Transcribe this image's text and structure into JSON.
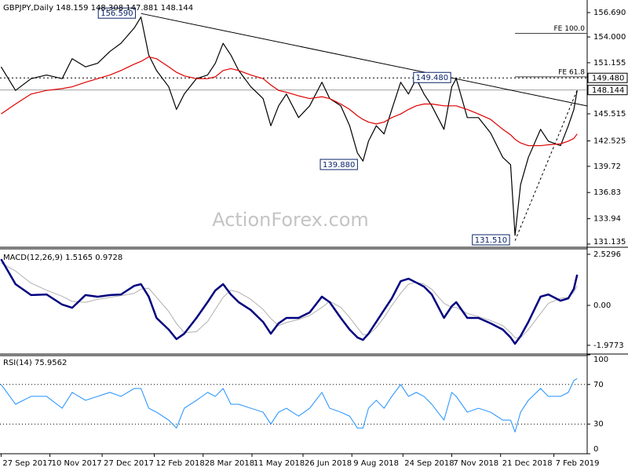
{
  "chart_data": [
    {
      "type": "line",
      "title": "GBPJPY,Daily  148.159 148.308 147.881 148.144",
      "watermark": "ActionForex.com",
      "xlim": [
        "2017-09-26",
        "2019-03-09"
      ],
      "ylim": [
        130.87,
        158.08
      ],
      "yticks": [
        {
          "value": 156.69,
          "label": "156.690"
        },
        {
          "value": 154,
          "label": "154.000"
        },
        151.155,
        145.515,
        142.525,
        139.72,
        136.83,
        133.94,
        131.135
      ],
      "x": [
        "2017-09-27",
        "2017-10-10",
        "2017-10-24",
        "2017-11-07",
        "2017-11-21",
        "2017-11-30",
        "2017-12-12",
        "2017-12-23",
        "2018-01-03",
        "2018-01-13",
        "2018-01-25",
        "2018-01-31",
        "2018-02-07",
        "2018-02-14",
        "2018-02-25",
        "2018-03-04",
        "2018-03-11",
        "2018-03-22",
        "2018-04-01",
        "2018-04-08",
        "2018-04-15",
        "2018-04-22",
        "2018-04-29",
        "2018-05-10",
        "2018-05-21",
        "2018-05-28",
        "2018-06-04",
        "2018-06-11",
        "2018-06-22",
        "2018-07-02",
        "2018-07-13",
        "2018-07-20",
        "2018-07-30",
        "2018-08-07",
        "2018-08-14",
        "2018-08-19",
        "2018-08-24",
        "2018-08-31",
        "2018-09-07",
        "2018-09-14",
        "2018-09-22",
        "2018-09-29",
        "2018-10-06",
        "2018-10-13",
        "2018-10-20",
        "2018-10-31",
        "2018-11-07",
        "2018-11-11",
        "2018-11-21",
        "2018-12-01",
        "2018-12-12",
        "2018-12-23",
        "2018-12-30",
        "2019-01-03",
        "2019-01-08",
        "2019-01-15",
        "2019-01-26",
        "2019-02-02",
        "2019-02-13",
        "2019-02-20",
        "2019-02-25",
        "2019-02-28"
      ],
      "series": [
        {
          "color": "#000000",
          "width": 1.2,
          "values": [
            150.7,
            148.1,
            149.4,
            149.8,
            149.4,
            151.6,
            150.7,
            151.1,
            152.4,
            153.3,
            155.0,
            156.2,
            152.0,
            150.3,
            148.5,
            146.0,
            147.7,
            149.4,
            149.8,
            151.1,
            153.3,
            152.0,
            150.3,
            148.5,
            147.2,
            144.2,
            146.4,
            147.7,
            145.1,
            146.4,
            149.0,
            147.2,
            146.4,
            144.2,
            141.2,
            140.3,
            142.5,
            144.2,
            143.3,
            146.0,
            149.0,
            147.7,
            149.4,
            147.7,
            146.4,
            143.8,
            148.5,
            149.4,
            145.1,
            145.1,
            143.4,
            140.7,
            139.9,
            132.1,
            137.7,
            140.7,
            143.8,
            142.5,
            142.0,
            144.2,
            146.0,
            148.1
          ]
        },
        {
          "color": "#e00000",
          "width": 1.2,
          "values": [
            145.5,
            146.6,
            147.7,
            148.1,
            148.3,
            148.5,
            149.0,
            149.4,
            149.8,
            150.3,
            151.0,
            151.3,
            151.8,
            151.6,
            150.7,
            150.1,
            149.7,
            149.4,
            149.4,
            149.6,
            150.3,
            150.5,
            150.3,
            149.8,
            149.4,
            148.7,
            148.1,
            147.9,
            147.5,
            147.2,
            147.4,
            147.2,
            146.6,
            146.0,
            145.3,
            144.9,
            144.6,
            144.4,
            144.6,
            145.1,
            145.5,
            146.0,
            146.4,
            146.6,
            146.6,
            146.4,
            146.4,
            146.4,
            146.0,
            145.5,
            144.9,
            143.8,
            143.2,
            142.7,
            142.3,
            142.0,
            142.0,
            142.1,
            142.2,
            142.5,
            142.8,
            143.3
          ]
        }
      ],
      "trendlines": [
        {
          "x": [
            "2018-01-31",
            "2019-03-09"
          ],
          "values": [
            156.59,
            146.38
          ],
          "dash": "none"
        },
        {
          "x": [
            "2019-01-03",
            "2019-02-28"
          ],
          "values": [
            131.51,
            148.144
          ],
          "dash": "3,3"
        }
      ],
      "levels": [
        {
          "label": "FE 100.0",
          "value": 154.4,
          "from": "2019-01-03"
        },
        {
          "label": "FE 61.8",
          "value": 149.6,
          "from": "2019-01-03"
        }
      ],
      "price_lines": [
        {
          "value": 149.48,
          "label": "149.480",
          "dash": "2,3",
          "color": "#000000"
        },
        {
          "value": 148.144,
          "label": "148.144",
          "dash": "none",
          "color": "#a0a0a0"
        }
      ],
      "annotations": [
        {
          "text": "156.590",
          "x": "2018-01-31",
          "value": 156.59
        },
        {
          "text": "139.880",
          "x": "2018-08-19",
          "value": 139.88
        },
        {
          "text": "149.480",
          "x": "2018-11-11",
          "value": 149.48
        },
        {
          "text": "131.510",
          "x": "2019-01-03",
          "value": 131.51
        }
      ]
    },
    {
      "type": "line",
      "title": "MACD(12,26,9) 1.5165 0.9728",
      "xlim": [
        "2017-09-26",
        "2019-03-09"
      ],
      "ylim": [
        -2.37,
        2.76
      ],
      "yticks": [
        2.5296,
        {
          "value": 0,
          "label": "0.00"
        },
        -1.9773
      ],
      "grid": false,
      "x": [
        "2017-09-27",
        "2017-10-10",
        "2017-10-24",
        "2017-11-07",
        "2017-11-21",
        "2017-11-30",
        "2017-12-12",
        "2017-12-23",
        "2018-01-03",
        "2018-01-13",
        "2018-01-25",
        "2018-01-31",
        "2018-02-07",
        "2018-02-14",
        "2018-02-25",
        "2018-03-04",
        "2018-03-11",
        "2018-03-22",
        "2018-04-01",
        "2018-04-08",
        "2018-04-15",
        "2018-04-22",
        "2018-04-29",
        "2018-05-10",
        "2018-05-21",
        "2018-05-28",
        "2018-06-04",
        "2018-06-11",
        "2018-06-22",
        "2018-07-02",
        "2018-07-13",
        "2018-07-20",
        "2018-07-30",
        "2018-08-07",
        "2018-08-14",
        "2018-08-19",
        "2018-08-24",
        "2018-08-31",
        "2018-09-07",
        "2018-09-14",
        "2018-09-22",
        "2018-09-29",
        "2018-10-06",
        "2018-10-13",
        "2018-10-20",
        "2018-10-31",
        "2018-11-07",
        "2018-11-11",
        "2018-11-21",
        "2018-12-01",
        "2018-12-12",
        "2018-12-23",
        "2018-12-30",
        "2019-01-03",
        "2019-01-08",
        "2019-01-15",
        "2019-01-26",
        "2019-02-02",
        "2019-02-13",
        "2019-02-20",
        "2019-02-25",
        "2019-02-28"
      ],
      "series": [
        {
          "color": "#b0b0b0",
          "width": 1,
          "values": [
            2.1,
            1.7,
            1.1,
            0.75,
            0.45,
            0.2,
            0.15,
            0.3,
            0.4,
            0.48,
            0.6,
            0.8,
            0.85,
            0.4,
            -0.3,
            -0.9,
            -1.35,
            -1.3,
            -0.8,
            -0.2,
            0.4,
            0.75,
            0.65,
            0.3,
            -0.2,
            -0.65,
            -1.0,
            -0.85,
            -0.7,
            -0.5,
            -0.1,
            0.2,
            -0.1,
            -0.6,
            -1.1,
            -1.45,
            -1.45,
            -1.1,
            -0.6,
            0.0,
            0.6,
            1.05,
            1.15,
            1.05,
            0.8,
            0.1,
            -0.1,
            -0.1,
            -0.4,
            -0.55,
            -0.75,
            -1.0,
            -1.35,
            -1.6,
            -1.6,
            -1.2,
            -0.4,
            0.1,
            0.35,
            0.4,
            0.65,
            0.97
          ]
        },
        {
          "color": "#000080",
          "width": 2.5,
          "values": [
            2.29,
            1.05,
            0.51,
            0.54,
            0.04,
            -0.12,
            0.51,
            0.43,
            0.51,
            0.54,
            0.97,
            1.05,
            0.43,
            -0.62,
            -1.2,
            -1.67,
            -1.4,
            -0.62,
            0.16,
            0.74,
            1.05,
            0.54,
            0.16,
            -0.23,
            -0.82,
            -1.4,
            -0.89,
            -0.62,
            -0.62,
            -0.35,
            0.43,
            0.16,
            -0.62,
            -1.2,
            -1.59,
            -1.71,
            -1.4,
            -0.82,
            -0.23,
            0.35,
            1.2,
            1.32,
            1.13,
            0.93,
            0.54,
            -0.62,
            -0.04,
            0.16,
            -0.62,
            -0.62,
            -0.89,
            -1.2,
            -1.59,
            -1.9,
            -1.52,
            -0.82,
            0.43,
            0.54,
            0.23,
            0.35,
            0.82,
            1.52
          ]
        }
      ]
    },
    {
      "type": "line",
      "title": "RSI(14) 75.9562",
      "xlim": [
        "2017-09-26",
        "2019-03-09"
      ],
      "ylim": [
        0,
        100
      ],
      "yticks": [
        100,
        70,
        30,
        0
      ],
      "grid": true,
      "x": [
        "2017-09-27",
        "2017-10-10",
        "2017-10-24",
        "2017-11-07",
        "2017-11-21",
        "2017-11-30",
        "2017-12-12",
        "2017-12-23",
        "2018-01-03",
        "2018-01-13",
        "2018-01-25",
        "2018-01-31",
        "2018-02-07",
        "2018-02-14",
        "2018-02-25",
        "2018-03-04",
        "2018-03-11",
        "2018-03-22",
        "2018-04-01",
        "2018-04-08",
        "2018-04-15",
        "2018-04-22",
        "2018-04-29",
        "2018-05-10",
        "2018-05-21",
        "2018-05-28",
        "2018-06-04",
        "2018-06-11",
        "2018-06-22",
        "2018-07-02",
        "2018-07-13",
        "2018-07-20",
        "2018-07-30",
        "2018-08-07",
        "2018-08-14",
        "2018-08-19",
        "2018-08-24",
        "2018-08-31",
        "2018-09-07",
        "2018-09-14",
        "2018-09-22",
        "2018-09-29",
        "2018-10-06",
        "2018-10-13",
        "2018-10-20",
        "2018-10-31",
        "2018-11-07",
        "2018-11-11",
        "2018-11-21",
        "2018-12-01",
        "2018-12-12",
        "2018-12-23",
        "2018-12-30",
        "2019-01-03",
        "2019-01-08",
        "2019-01-15",
        "2019-01-26",
        "2019-02-02",
        "2019-02-13",
        "2019-02-20",
        "2019-02-25",
        "2019-02-28"
      ],
      "series": [
        {
          "color": "#1e90ff",
          "width": 1,
          "values": [
            70,
            50,
            58,
            58,
            46,
            62,
            54,
            58,
            62,
            58,
            66,
            66,
            46,
            42,
            34,
            26,
            46,
            54,
            62,
            58,
            66,
            50,
            50,
            46,
            42,
            30,
            42,
            46,
            38,
            46,
            62,
            46,
            42,
            38,
            26,
            26,
            46,
            54,
            46,
            58,
            70,
            58,
            62,
            58,
            50,
            34,
            62,
            58,
            42,
            46,
            42,
            34,
            34,
            22,
            42,
            54,
            66,
            58,
            58,
            62,
            74,
            76
          ]
        }
      ],
      "xticks": [
        {
          "value": "2017-09-27",
          "label": "27 Sep 2017"
        },
        {
          "value": "2017-11-10",
          "label": "10 Nov 2017"
        },
        {
          "value": "2017-12-27",
          "label": "27 Dec 2017"
        },
        {
          "value": "2018-02-12",
          "label": "12 Feb 2018"
        },
        {
          "value": "2018-03-28",
          "label": "28 Mar 2018"
        },
        {
          "value": "2018-05-11",
          "label": "11 May 2018"
        },
        {
          "value": "2018-06-26",
          "label": "26 Jun 2018"
        },
        {
          "value": "2018-08-09",
          "label": "9 Aug 2018"
        },
        {
          "value": "2018-09-24",
          "label": "24 Sep 2018"
        },
        {
          "value": "2018-11-07",
          "label": "7 Nov 2018"
        },
        {
          "value": "2018-12-21",
          "label": "21 Dec 2018"
        },
        {
          "value": "2019-02-07",
          "label": "7 Feb 2019"
        }
      ]
    }
  ]
}
